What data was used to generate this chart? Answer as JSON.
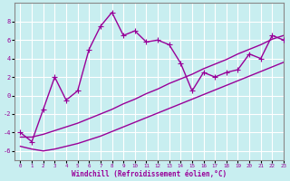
{
  "xlabel": "Windchill (Refroidissement éolien,°C)",
  "background_color": "#c8eef0",
  "grid_color": "#b0d8dc",
  "line_color": "#990099",
  "x_all": [
    0,
    1,
    2,
    3,
    4,
    5,
    6,
    7,
    8,
    9,
    10,
    11,
    12,
    13,
    14,
    15,
    16,
    17,
    18,
    19,
    20,
    21,
    22,
    23
  ],
  "y_main": [
    -4.0,
    -5.0,
    -1.5,
    2.0,
    -0.5,
    0.5,
    5.0,
    7.5,
    9.0,
    6.5,
    7.0,
    5.8,
    6.0,
    5.5,
    3.5,
    0.5,
    2.5,
    2.0,
    2.5,
    2.8,
    4.5,
    4.0,
    6.5,
    6.0
  ],
  "y_upper": [
    -4.5,
    -4.5,
    -4.2,
    -3.8,
    -3.4,
    -3.0,
    -2.5,
    -2.0,
    -1.5,
    -0.9,
    -0.4,
    0.2,
    0.7,
    1.3,
    1.8,
    2.3,
    2.9,
    3.4,
    3.9,
    4.5,
    5.0,
    5.5,
    6.1,
    6.5
  ],
  "y_lower": [
    -5.5,
    -5.8,
    -6.0,
    -5.8,
    -5.5,
    -5.2,
    -4.8,
    -4.4,
    -3.9,
    -3.4,
    -2.9,
    -2.4,
    -1.9,
    -1.4,
    -0.9,
    -0.4,
    0.1,
    0.6,
    1.1,
    1.6,
    2.1,
    2.6,
    3.1,
    3.6
  ],
  "ylim": [
    -7,
    10
  ],
  "xlim": [
    -0.5,
    23
  ],
  "yticks": [
    -6,
    -4,
    -2,
    0,
    2,
    4,
    6,
    8
  ],
  "xticks": [
    0,
    1,
    2,
    3,
    4,
    5,
    6,
    7,
    8,
    9,
    10,
    11,
    12,
    13,
    14,
    15,
    16,
    17,
    18,
    19,
    20,
    21,
    22,
    23
  ],
  "marker": "+",
  "markersize": 4,
  "linewidth": 1.0
}
